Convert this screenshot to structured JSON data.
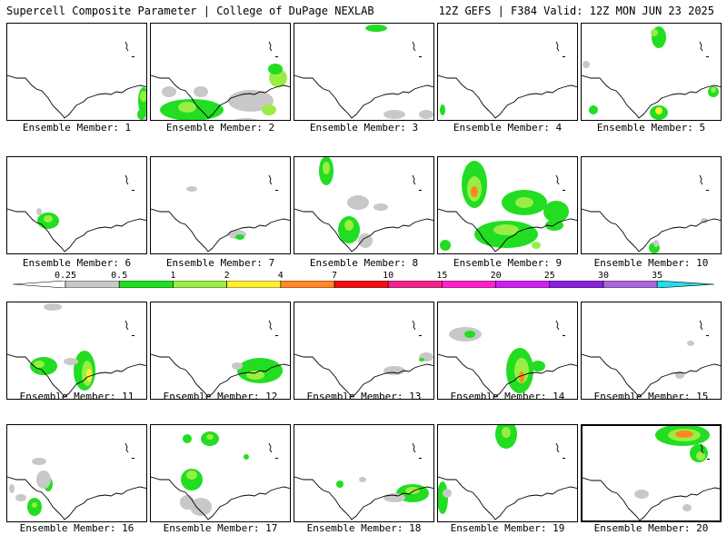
{
  "header": {
    "left": "Supercell Composite Parameter | College of DuPage NEXLAB",
    "right": "12Z GEFS | F384 Valid: 12Z MON JUN 23 2025"
  },
  "label_prefix": "Ensemble Member: ",
  "selected_member": 20,
  "colors": {
    "c0": "#c8c8c8",
    "c1": "#22dd22",
    "c2": "#99ee44",
    "c3": "#ffee33",
    "c4": "#ff8822",
    "c5": "#ee1111",
    "c6": "#ee2288",
    "c7": "#ff22cc",
    "c8": "#cc22ee",
    "c9": "#8822dd",
    "c10": "#aa66dd",
    "c11": "#22ddee"
  },
  "legend": {
    "ticks": [
      "0.25",
      "0.5",
      "1",
      "2",
      "4",
      "7",
      "10",
      "15",
      "20",
      "25",
      "30",
      "35"
    ],
    "colors": [
      "#ffffff",
      "#c8c8c8",
      "#22dd22",
      "#99ee44",
      "#ffee33",
      "#ff8822",
      "#ee1111",
      "#ee2288",
      "#ff22cc",
      "#cc22ee",
      "#8822dd",
      "#aa66dd",
      "#22ddee"
    ]
  },
  "members": [
    {
      "id": 1,
      "label": "1",
      "blobs": [
        [
          150,
          85,
          6,
          15,
          1
        ],
        [
          150,
          80,
          4,
          6,
          2
        ],
        [
          148,
          100,
          5,
          6,
          1
        ],
        [
          153,
          110,
          4,
          8,
          0
        ]
      ]
    },
    {
      "id": 2,
      "label": "2",
      "blobs": [
        [
          45,
          95,
          35,
          12,
          1
        ],
        [
          40,
          92,
          10,
          6,
          2
        ],
        [
          20,
          75,
          8,
          6,
          0
        ],
        [
          55,
          75,
          8,
          6,
          0
        ],
        [
          110,
          85,
          25,
          12,
          0
        ],
        [
          140,
          60,
          10,
          10,
          2
        ],
        [
          137,
          50,
          8,
          6,
          1
        ],
        [
          130,
          95,
          8,
          6,
          2
        ],
        [
          105,
          112,
          20,
          8,
          0
        ]
      ]
    },
    {
      "id": 3,
      "label": "3",
      "blobs": [
        [
          90,
          5,
          12,
          4,
          1
        ],
        [
          110,
          100,
          12,
          5,
          0
        ],
        [
          145,
          100,
          8,
          5,
          0
        ]
      ]
    },
    {
      "id": 4,
      "label": "4",
      "blobs": [
        [
          5,
          95,
          3,
          6,
          1
        ]
      ]
    },
    {
      "id": 5,
      "label": "5",
      "blobs": [
        [
          85,
          15,
          8,
          12,
          1
        ],
        [
          80,
          10,
          4,
          4,
          2
        ],
        [
          13,
          95,
          5,
          5,
          1
        ],
        [
          85,
          98,
          10,
          8,
          1
        ],
        [
          85,
          96,
          4,
          4,
          3
        ],
        [
          145,
          75,
          6,
          6,
          1
        ],
        [
          145,
          73,
          3,
          3,
          2
        ],
        [
          5,
          45,
          4,
          4,
          0
        ]
      ]
    },
    {
      "id": 6,
      "label": "6",
      "blobs": [
        [
          45,
          70,
          12,
          9,
          1
        ],
        [
          45,
          68,
          5,
          4,
          2
        ],
        [
          35,
          60,
          3,
          4,
          0
        ]
      ]
    },
    {
      "id": 7,
      "label": "7",
      "blobs": [
        [
          45,
          35,
          6,
          3,
          0
        ],
        [
          95,
          85,
          10,
          5,
          0
        ],
        [
          98,
          88,
          5,
          3,
          1
        ]
      ]
    },
    {
      "id": 8,
      "label": "8",
      "blobs": [
        [
          35,
          15,
          8,
          16,
          1
        ],
        [
          35,
          12,
          4,
          7,
          2
        ],
        [
          70,
          50,
          12,
          8,
          0
        ],
        [
          60,
          80,
          12,
          15,
          1
        ],
        [
          60,
          75,
          5,
          6,
          2
        ],
        [
          78,
          92,
          8,
          8,
          0
        ],
        [
          95,
          55,
          8,
          4,
          0
        ]
      ]
    },
    {
      "id": 9,
      "label": "9",
      "blobs": [
        [
          40,
          30,
          14,
          26,
          1
        ],
        [
          40,
          35,
          8,
          14,
          2
        ],
        [
          40,
          38,
          4,
          6,
          4
        ],
        [
          95,
          50,
          25,
          14,
          1
        ],
        [
          95,
          50,
          10,
          6,
          2
        ],
        [
          75,
          85,
          35,
          15,
          1
        ],
        [
          75,
          80,
          14,
          6,
          2
        ],
        [
          128,
          75,
          10,
          6,
          1
        ],
        [
          8,
          97,
          6,
          6,
          1
        ],
        [
          108,
          97,
          5,
          4,
          2
        ],
        [
          130,
          60,
          14,
          12,
          1
        ]
      ]
    },
    {
      "id": 10,
      "label": "10",
      "blobs": [
        [
          80,
          100,
          6,
          6,
          1
        ],
        [
          82,
          95,
          3,
          4,
          0
        ],
        [
          135,
          70,
          4,
          3,
          0
        ]
      ]
    },
    {
      "id": 11,
      "label": "11",
      "blobs": [
        [
          85,
          75,
          12,
          22,
          1
        ],
        [
          88,
          78,
          6,
          14,
          2
        ],
        [
          90,
          80,
          3,
          7,
          3
        ],
        [
          40,
          70,
          15,
          10,
          1
        ],
        [
          35,
          68,
          6,
          4,
          2
        ],
        [
          50,
          5,
          10,
          4,
          0
        ],
        [
          70,
          65,
          8,
          4,
          0
        ]
      ]
    },
    {
      "id": 12,
      "label": "12",
      "blobs": [
        [
          120,
          75,
          25,
          14,
          1
        ],
        [
          115,
          80,
          10,
          5,
          2
        ],
        [
          95,
          70,
          6,
          4,
          0
        ]
      ]
    },
    {
      "id": 13,
      "label": "13",
      "blobs": [
        [
          145,
          60,
          8,
          5,
          0
        ],
        [
          140,
          63,
          3,
          2,
          1
        ],
        [
          110,
          75,
          12,
          5,
          0
        ]
      ]
    },
    {
      "id": 14,
      "label": "14",
      "blobs": [
        [
          90,
          75,
          15,
          25,
          1
        ],
        [
          92,
          75,
          8,
          14,
          2
        ],
        [
          92,
          82,
          3,
          6,
          4
        ],
        [
          30,
          35,
          18,
          8,
          0
        ],
        [
          35,
          35,
          6,
          4,
          1
        ],
        [
          110,
          70,
          8,
          6,
          1
        ]
      ]
    },
    {
      "id": 15,
      "label": "15",
      "blobs": [
        [
          108,
          80,
          5,
          4,
          0
        ],
        [
          120,
          45,
          4,
          3,
          0
        ]
      ]
    },
    {
      "id": 16,
      "label": "16",
      "blobs": [
        [
          45,
          65,
          5,
          8,
          1
        ],
        [
          40,
          60,
          8,
          10,
          0
        ],
        [
          30,
          90,
          8,
          10,
          1
        ],
        [
          30,
          88,
          3,
          3,
          2
        ],
        [
          15,
          80,
          6,
          4,
          0
        ],
        [
          35,
          40,
          8,
          4,
          0
        ],
        [
          5,
          70,
          3,
          5,
          0
        ]
      ]
    },
    {
      "id": 17,
      "label": "17",
      "blobs": [
        [
          45,
          60,
          12,
          12,
          1
        ],
        [
          45,
          55,
          6,
          5,
          2
        ],
        [
          65,
          15,
          10,
          8,
          1
        ],
        [
          65,
          13,
          4,
          3,
          2
        ],
        [
          40,
          15,
          5,
          5,
          1
        ],
        [
          105,
          35,
          3,
          3,
          1
        ],
        [
          55,
          90,
          12,
          10,
          0
        ],
        [
          40,
          85,
          8,
          8,
          0
        ]
      ]
    },
    {
      "id": 18,
      "label": "18",
      "blobs": [
        [
          130,
          75,
          18,
          10,
          1
        ],
        [
          130,
          72,
          8,
          4,
          2
        ],
        [
          110,
          80,
          12,
          5,
          0
        ],
        [
          50,
          65,
          4,
          4,
          1
        ],
        [
          75,
          60,
          4,
          3,
          0
        ]
      ]
    },
    {
      "id": 19,
      "label": "19",
      "blobs": [
        [
          75,
          10,
          12,
          16,
          1
        ],
        [
          75,
          8,
          5,
          6,
          2
        ],
        [
          5,
          80,
          6,
          18,
          1
        ],
        [
          10,
          75,
          5,
          5,
          0
        ]
      ]
    },
    {
      "id": 20,
      "label": "20",
      "blobs": [
        [
          110,
          10,
          30,
          12,
          1
        ],
        [
          112,
          10,
          18,
          7,
          2
        ],
        [
          112,
          9,
          10,
          4,
          4
        ],
        [
          128,
          30,
          10,
          10,
          1
        ],
        [
          130,
          33,
          5,
          5,
          2
        ],
        [
          65,
          75,
          8,
          5,
          0
        ],
        [
          115,
          90,
          5,
          4,
          0
        ]
      ]
    }
  ]
}
